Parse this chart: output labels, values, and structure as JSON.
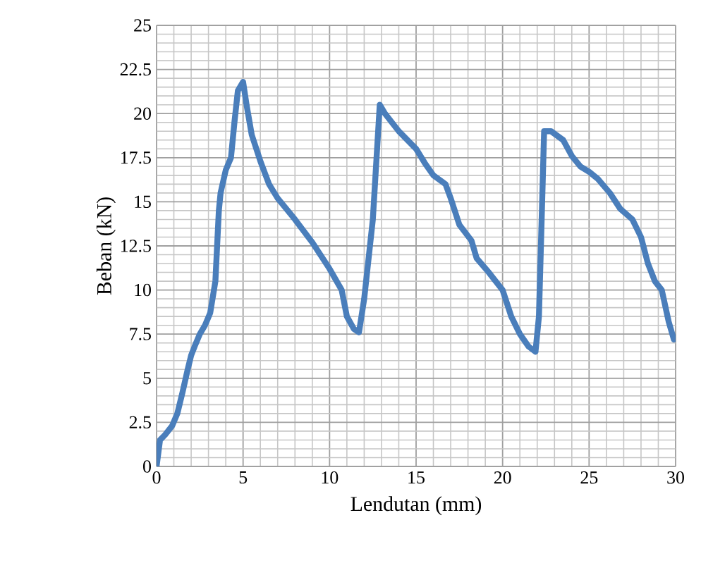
{
  "chart_data": {
    "type": "line",
    "xlabel": "Lendutan (mm)",
    "ylabel": "Beban (kN)",
    "xlim": [
      0,
      30
    ],
    "ylim": [
      0,
      25
    ],
    "xticks": [
      0,
      5,
      10,
      15,
      20,
      25,
      30
    ],
    "yticks": [
      0,
      2.5,
      5,
      7.5,
      10,
      12.5,
      15,
      17.5,
      20,
      22.5,
      25
    ],
    "grid": true,
    "legend": false,
    "marker": "none",
    "line_style": "solid",
    "series": [
      {
        "color": "#4a7ebb",
        "x": [
          0,
          0.2,
          0.5,
          0.9,
          1.2,
          1.5,
          1.8,
          2.0,
          2.2,
          2.5,
          2.8,
          3.1,
          3.4,
          3.5,
          3.6,
          3.7,
          4.0,
          4.3,
          4.5,
          4.7,
          5.0,
          5.2,
          5.5,
          6.0,
          6.5,
          7.0,
          8,
          9,
          10,
          10.7,
          11.0,
          11.4,
          11.7,
          12.0,
          12.5,
          12.9,
          13.2,
          14,
          15,
          15.5,
          16,
          16.7,
          17,
          17.5,
          18.2,
          18.5,
          19.2,
          20,
          20.5,
          21,
          21.5,
          21.9,
          22.1,
          22.4,
          22.8,
          23.5,
          24,
          24.5,
          25,
          25.5,
          26.2,
          26.8,
          27.5,
          28,
          28.4,
          28.8,
          29.2,
          29.6,
          29.9
        ],
        "values": [
          0,
          1.5,
          1.8,
          2.3,
          3.0,
          4.2,
          5.5,
          6.3,
          6.8,
          7.5,
          8.0,
          8.7,
          10.5,
          12.5,
          14.5,
          15.5,
          16.8,
          17.5,
          19.5,
          21.3,
          21.8,
          20.5,
          18.8,
          17.3,
          16.0,
          15.2,
          14,
          12.7,
          11.2,
          10.0,
          8.5,
          7.8,
          7.6,
          9.5,
          14,
          20.5,
          20.0,
          19,
          18,
          17.2,
          16.5,
          16.0,
          15.2,
          13.7,
          12.8,
          11.8,
          11,
          10,
          8.5,
          7.5,
          6.8,
          6.5,
          8.5,
          19.0,
          19.0,
          18.5,
          17.6,
          17.0,
          16.7,
          16.3,
          15.5,
          14.6,
          14.0,
          13.0,
          11.5,
          10.5,
          10.0,
          8.2,
          7.2
        ]
      }
    ]
  }
}
